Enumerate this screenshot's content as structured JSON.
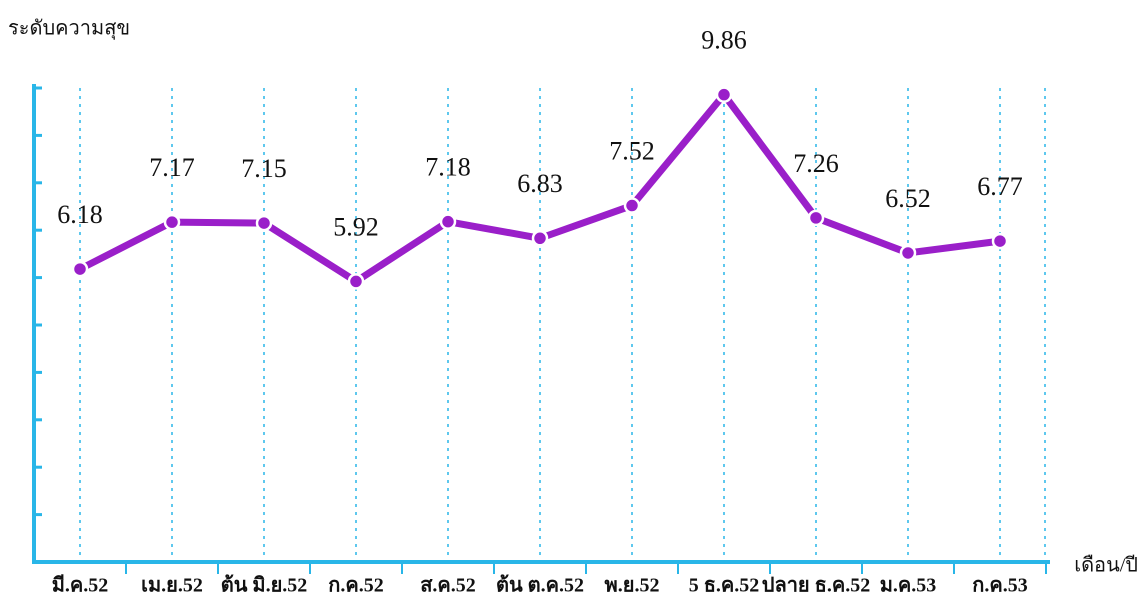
{
  "chart_data": {
    "type": "line",
    "y_label": "ระดับความสุข",
    "x_label": "เดือน/ปี",
    "categories": [
      "มี.ค.52",
      "เม.ย.52",
      "ต้น มิ.ย.52",
      "ก.ค.52",
      "ส.ค.52",
      "ต้น ต.ค.52",
      "พ.ย.52",
      "5 ธ.ค.52",
      "ปลาย ธ.ค.52",
      "ม.ค.53",
      "ก.ค.53"
    ],
    "values": [
      6.18,
      7.17,
      7.15,
      5.92,
      7.18,
      6.83,
      7.52,
      9.86,
      7.26,
      6.52,
      6.77
    ],
    "color": "#9a1fc9",
    "ylim": [
      0,
      10
    ],
    "yticks": [
      0,
      1,
      2,
      3,
      4,
      5,
      6,
      7,
      8,
      9,
      10
    ],
    "grid": true
  }
}
